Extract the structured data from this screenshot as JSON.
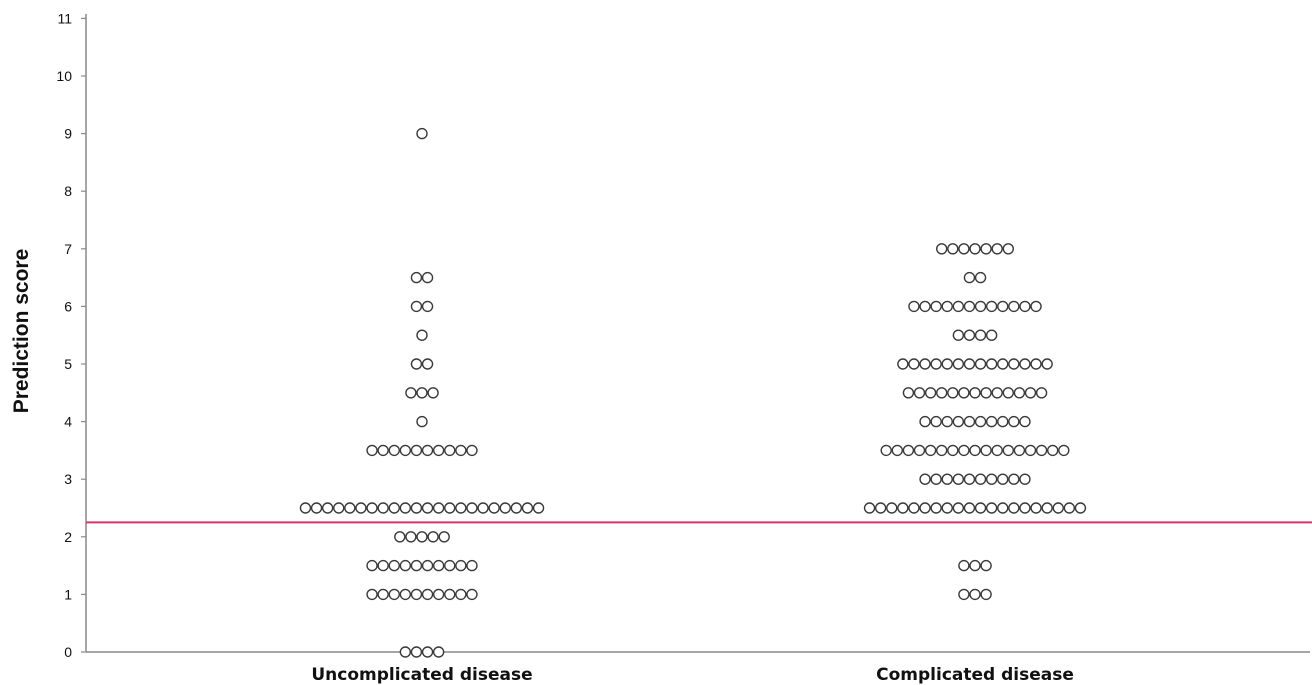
{
  "chart_data": {
    "type": "scatter",
    "subtype": "dot-plot",
    "title": "",
    "xlabel": "",
    "ylabel": "Prediction score",
    "ylim": [
      0,
      11
    ],
    "yticks": [
      "0",
      "1",
      "2",
      "3",
      "4",
      "5",
      "6",
      "7",
      "8",
      "9",
      "10",
      "11"
    ],
    "categories": [
      "Uncomplicated disease",
      "Complicated disease"
    ],
    "grid": false,
    "cutoff_line": {
      "value": 2.25,
      "color": "#d6336c"
    },
    "colors": {
      "axis": "#888888",
      "marker_stroke": "#3a3a3a",
      "marker_fill": "#ffffff"
    },
    "series": [
      {
        "category": "Uncomplicated disease",
        "points": [
          {
            "y": 0,
            "count": 4
          },
          {
            "y": 1,
            "count": 10
          },
          {
            "y": 1.5,
            "count": 10
          },
          {
            "y": 2,
            "count": 5
          },
          {
            "y": 2.5,
            "count": 22
          },
          {
            "y": 3.5,
            "count": 10
          },
          {
            "y": 4,
            "count": 1
          },
          {
            "y": 4.5,
            "count": 3
          },
          {
            "y": 5,
            "count": 2
          },
          {
            "y": 5.5,
            "count": 1
          },
          {
            "y": 6,
            "count": 2
          },
          {
            "y": 6.5,
            "count": 2
          },
          {
            "y": 9,
            "count": 1
          }
        ]
      },
      {
        "category": "Complicated disease",
        "points": [
          {
            "y": 1,
            "count": 3
          },
          {
            "y": 1.5,
            "count": 3
          },
          {
            "y": 2.5,
            "count": 20
          },
          {
            "y": 3,
            "count": 10
          },
          {
            "y": 3.5,
            "count": 17
          },
          {
            "y": 4,
            "count": 10
          },
          {
            "y": 4.5,
            "count": 13
          },
          {
            "y": 5,
            "count": 14
          },
          {
            "y": 5.5,
            "count": 4
          },
          {
            "y": 6,
            "count": 12
          },
          {
            "y": 6.5,
            "count": 2
          },
          {
            "y": 7,
            "count": 7
          }
        ]
      }
    ]
  }
}
